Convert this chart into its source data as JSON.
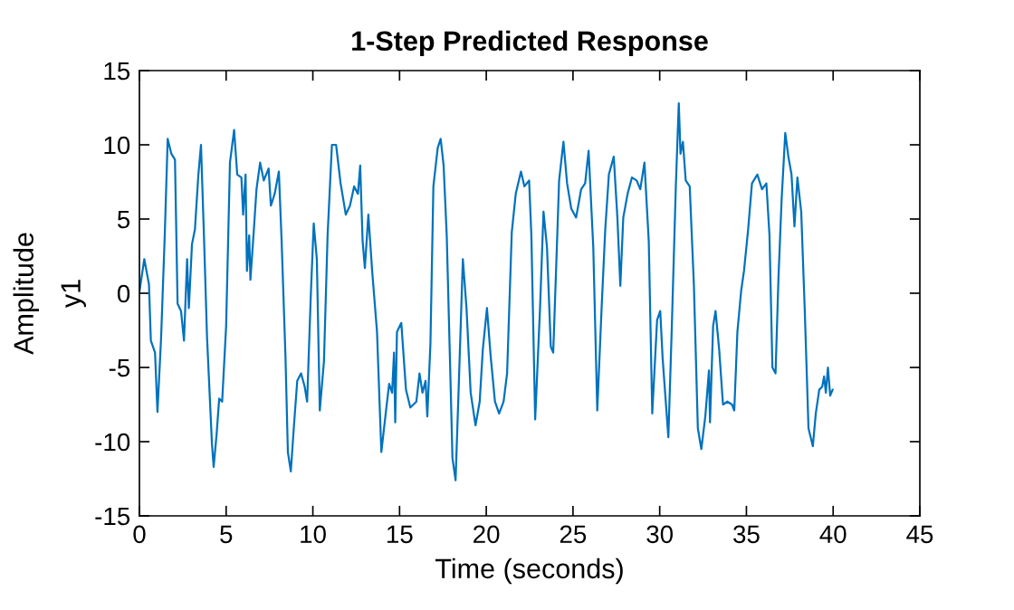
{
  "chart_data": {
    "type": "line",
    "title": "1-Step Predicted Response",
    "xlabel": "Time (seconds)",
    "ylabel": "Amplitude",
    "annotations": [
      "y1"
    ],
    "series": [
      {
        "color": "#0072bd",
        "x": [
          0,
          0.28,
          0.55,
          0.66,
          0.9,
          1.04,
          1.25,
          1.46,
          1.63,
          1.84,
          2.05,
          2.2,
          2.4,
          2.57,
          2.75,
          2.85,
          3.03,
          3.2,
          3.4,
          3.55,
          3.72,
          3.9,
          4.18,
          4.28,
          4.45,
          4.6,
          4.77,
          5.0,
          5.22,
          5.46,
          5.64,
          5.88,
          5.98,
          6.12,
          6.2,
          6.33,
          6.4,
          6.6,
          6.75,
          6.96,
          7.17,
          7.45,
          7.58,
          7.8,
          8.04,
          8.2,
          8.42,
          8.56,
          8.73,
          8.9,
          9.1,
          9.32,
          9.53,
          9.67,
          9.88,
          10.05,
          10.23,
          10.4,
          10.64,
          10.85,
          11.1,
          11.34,
          11.6,
          11.9,
          12.14,
          12.38,
          12.6,
          12.73,
          12.87,
          13.0,
          13.2,
          13.42,
          13.7,
          13.95,
          14.22,
          14.4,
          14.57,
          14.68,
          14.75,
          14.85,
          15.1,
          15.37,
          15.62,
          15.97,
          16.15,
          16.32,
          16.5,
          16.6,
          16.78,
          16.95,
          17.2,
          17.37,
          17.54,
          17.72,
          17.9,
          18.05,
          18.23,
          18.4,
          18.65,
          18.86,
          19.1,
          19.38,
          19.62,
          19.8,
          20.04,
          20.25,
          20.5,
          20.74,
          21.0,
          21.2,
          21.47,
          21.7,
          22.0,
          22.2,
          22.47,
          22.6,
          22.82,
          23.1,
          23.3,
          23.5,
          23.72,
          23.86,
          24.07,
          24.2,
          24.45,
          24.66,
          24.9,
          25.18,
          25.47,
          25.7,
          25.9,
          26.17,
          26.4,
          26.65,
          26.86,
          27.07,
          27.35,
          27.56,
          27.73,
          27.9,
          28.15,
          28.4,
          28.67,
          28.88,
          29.12,
          29.37,
          29.57,
          29.85,
          30.03,
          30.17,
          30.35,
          30.5,
          30.7,
          30.93,
          31.1,
          31.2,
          31.34,
          31.5,
          31.73,
          31.97,
          32.2,
          32.4,
          32.63,
          32.84,
          32.9,
          33.08,
          33.22,
          33.43,
          33.65,
          33.9,
          34.17,
          34.3,
          34.48,
          34.7,
          34.86,
          35.1,
          35.32,
          35.63,
          35.9,
          36.15,
          36.33,
          36.5,
          36.68,
          36.85,
          37.03,
          37.24,
          37.42,
          37.6,
          37.77,
          37.94,
          38.16,
          38.36,
          38.58,
          38.83,
          39.0,
          39.2,
          39.37,
          39.48,
          39.58,
          39.7,
          39.83,
          39.97
        ],
        "values": [
          0.1,
          2.3,
          0.6,
          -3.2,
          -4,
          -8.0,
          -3.0,
          3.9,
          10.4,
          9.4,
          9.0,
          -0.7,
          -1.2,
          -3.2,
          2.3,
          -1.0,
          3.3,
          4.3,
          8.0,
          10.0,
          3.9,
          -3.0,
          -10.1,
          -11.7,
          -9.5,
          -7.1,
          -7.3,
          -2.2,
          8.8,
          11.0,
          8.0,
          7.8,
          5.3,
          8.0,
          1.5,
          3.9,
          0.9,
          4.3,
          7.0,
          8.8,
          7.6,
          8.4,
          5.9,
          6.7,
          8.2,
          3.5,
          -4.2,
          -10.7,
          -12.0,
          -9.1,
          -5.9,
          -5.4,
          -6.3,
          -7.3,
          -0.2,
          4.7,
          2.3,
          -7.9,
          -4.6,
          3.9,
          10.0,
          10.0,
          7.4,
          5.3,
          5.9,
          7.2,
          6.7,
          8.6,
          3.5,
          1.7,
          5.3,
          1.5,
          -2.6,
          -10.7,
          -7.9,
          -6.1,
          -6.7,
          -4.0,
          -8.7,
          -2.6,
          -2.0,
          -6.5,
          -7.7,
          -7.3,
          -5.4,
          -6.7,
          -5.9,
          -8.3,
          -3.4,
          7.2,
          9.8,
          10.4,
          8.6,
          3.9,
          -4.2,
          -11.1,
          -12.6,
          -6.7,
          2.3,
          -1.0,
          -6.7,
          -8.9,
          -7.3,
          -3.8,
          -1.0,
          -4.2,
          -7.3,
          -8.1,
          -7.3,
          -5.4,
          4.1,
          6.7,
          8.2,
          7.2,
          7.6,
          3.9,
          -8.5,
          -1.0,
          5.5,
          3.1,
          -3.6,
          -4.0,
          3.1,
          7.6,
          10.2,
          7.4,
          5.7,
          5.1,
          7.0,
          7.4,
          9.6,
          3.1,
          -7.9,
          -1.0,
          4.3,
          8.0,
          9.2,
          5.1,
          0.5,
          5.1,
          6.7,
          7.8,
          7.6,
          7.0,
          8.8,
          3.5,
          -8.1,
          -1.8,
          -1.2,
          -4.4,
          -7.3,
          -9.7,
          -2.2,
          7.2,
          12.8,
          9.4,
          10.2,
          7.6,
          7.2,
          0.6,
          -9.1,
          -10.5,
          -8.3,
          -5.2,
          -8.7,
          -2.2,
          -1.2,
          -3.8,
          -7.5,
          -7.3,
          -7.5,
          -7.9,
          -2.6,
          0.2,
          1.5,
          4.3,
          7.4,
          8.0,
          7.0,
          7.4,
          3.9,
          -5.0,
          -5.4,
          1.1,
          6.3,
          10.8,
          9.2,
          8.0,
          4.5,
          7.8,
          5.5,
          -1.0,
          -9.1,
          -10.3,
          -8.1,
          -6.5,
          -6.3,
          -5.6,
          -6.7,
          -5.0,
          -6.9,
          -6.5
        ]
      }
    ],
    "xlim": [
      0,
      45
    ],
    "xticks": [
      0,
      5,
      10,
      15,
      20,
      25,
      30,
      35,
      40,
      45
    ],
    "ylim": [
      -15,
      15
    ],
    "yticks": [
      -15,
      -10,
      -5,
      0,
      5,
      10,
      15
    ],
    "grid": false,
    "marker": "none",
    "line_style": "solid"
  }
}
